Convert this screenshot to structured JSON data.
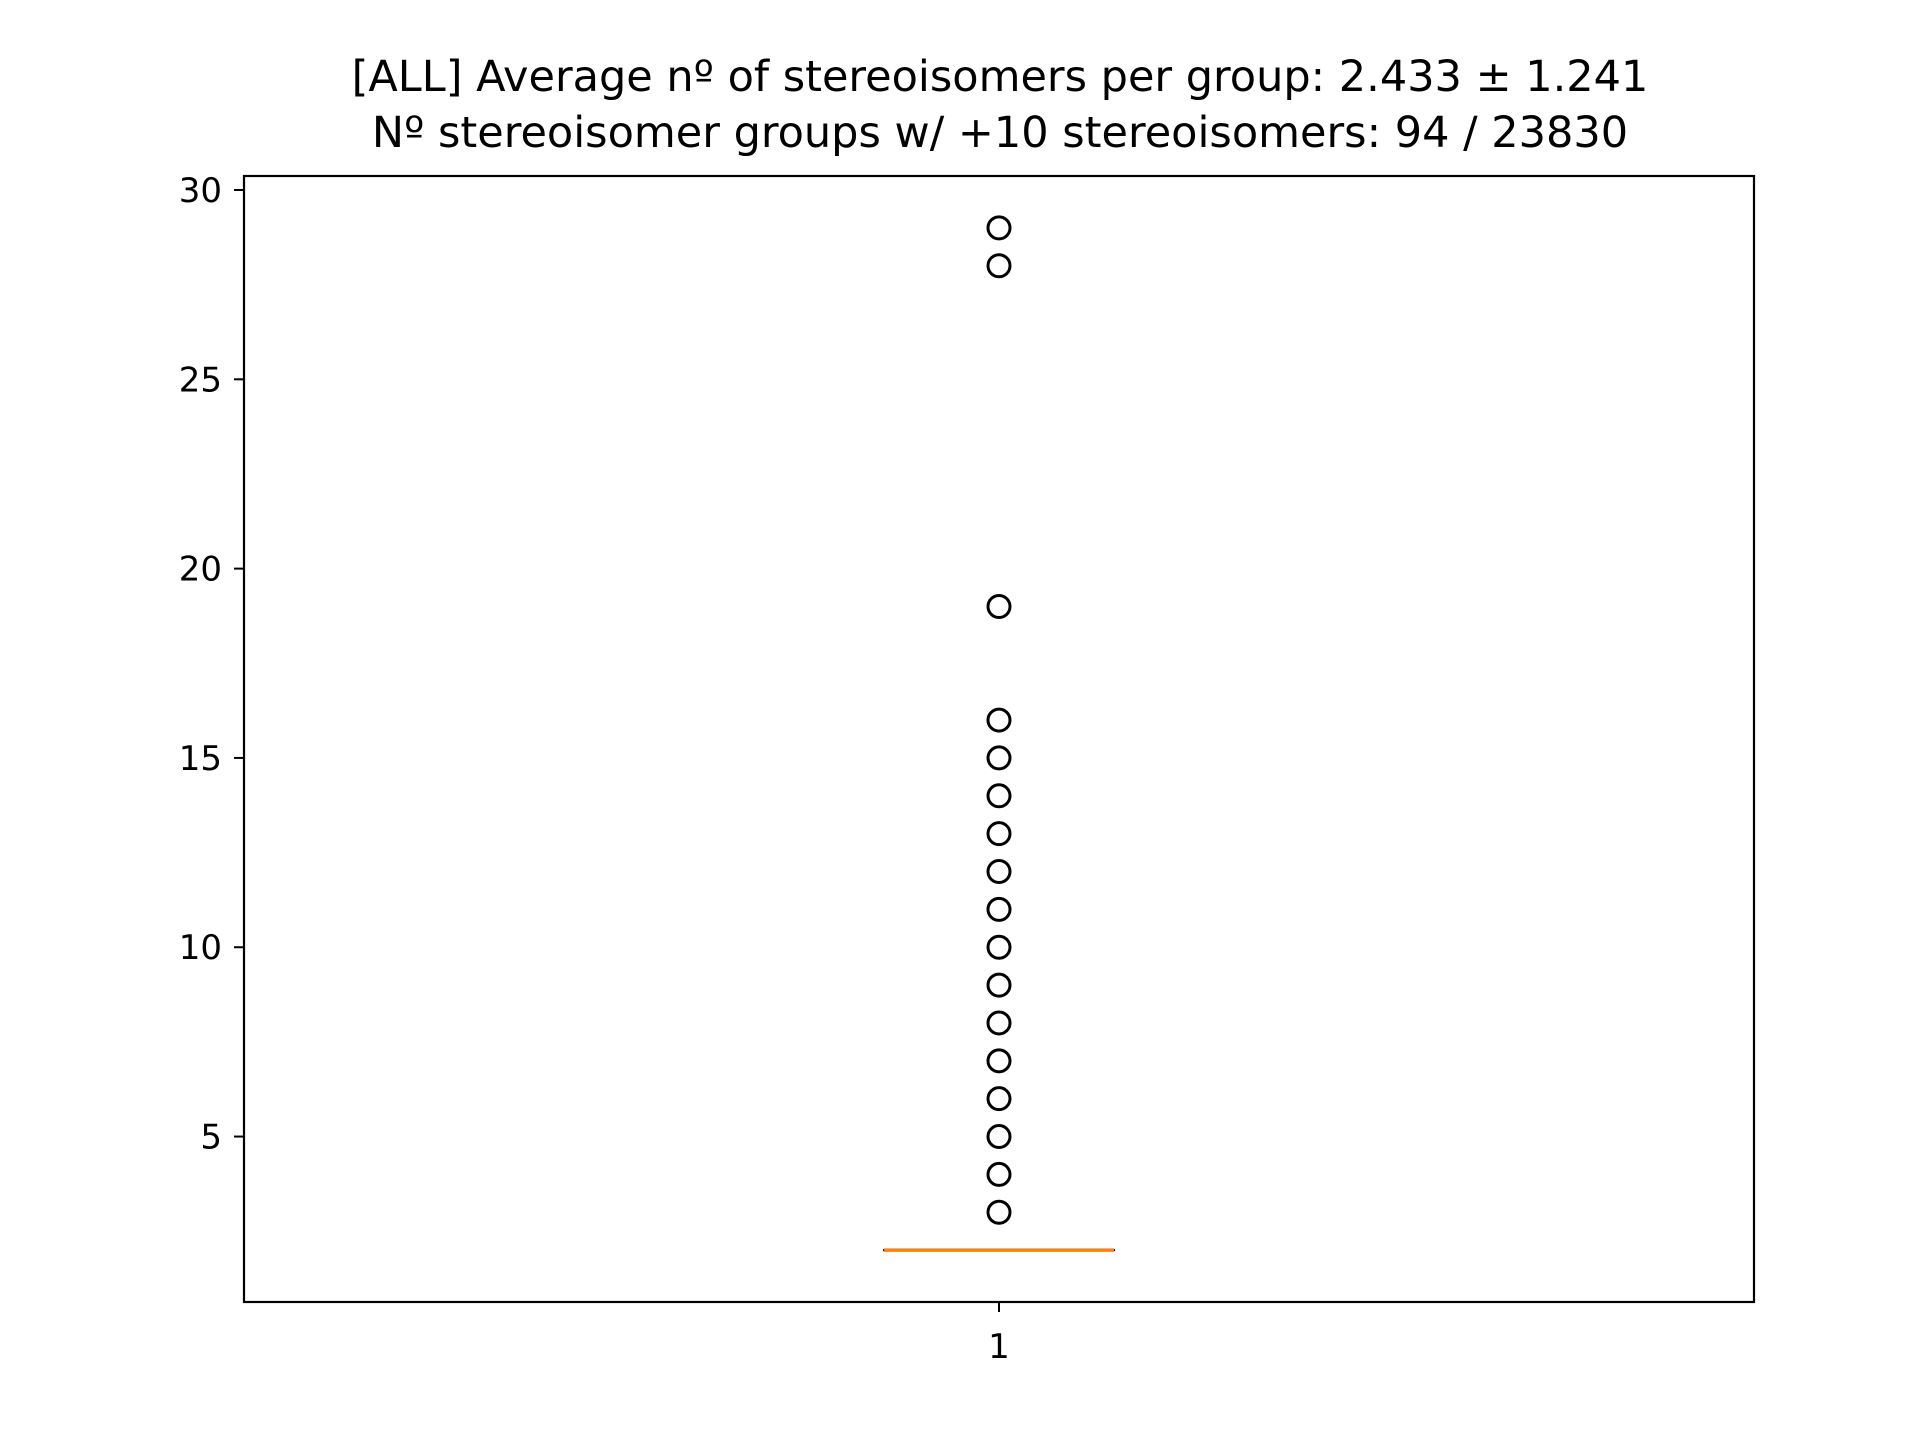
{
  "chart_data": {
    "type": "box",
    "title": "[ALL] Average nº of stereoisomers per group: 2.433 ± 1.241",
    "subtitle": "Nº stereoisomer groups w/ +10 stereoisomers: 94 / 23830",
    "xlabel": "",
    "ylabel": "",
    "categories": [
      "1"
    ],
    "x_ticks": [
      "1"
    ],
    "y_ticks": [
      "5",
      "10",
      "15",
      "20",
      "25",
      "30"
    ],
    "ylim": [
      0.63,
      30.37
    ],
    "grid": false,
    "box": {
      "q1": 2,
      "median": 2,
      "q3": 2,
      "whisker_low": 2,
      "whisker_high": 2
    },
    "outliers": [
      3,
      4,
      5,
      6,
      7,
      8,
      9,
      10,
      11,
      12,
      13,
      14,
      15,
      16,
      19,
      28,
      29
    ],
    "colors": {
      "median": "#ff7f0e",
      "box": "#000000",
      "outlier_edge": "#000000",
      "axes": "#000000",
      "background": "#ffffff"
    }
  }
}
